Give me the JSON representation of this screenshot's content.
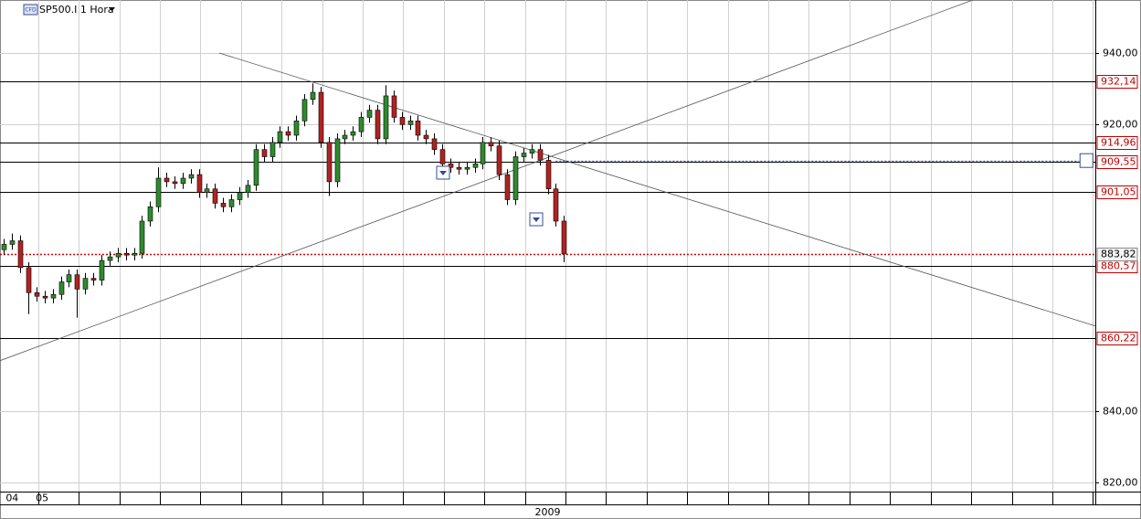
{
  "chart_data": {
    "type": "candlestick",
    "title": "SP500.I 1 Hora",
    "badge": "CFD",
    "xlim": [
      -0.5,
      134.5
    ],
    "ylim": [
      817.4,
      954.8
    ],
    "yticks": [
      {
        "value": 820,
        "label": "820,00"
      },
      {
        "value": 840,
        "label": "840,00"
      },
      {
        "value": 920,
        "label": "920,00"
      },
      {
        "value": 940,
        "label": "940,00"
      }
    ],
    "xticks": [
      4.2,
      9.2,
      14.2,
      19.2,
      24.2,
      29.2,
      34.2,
      39.2,
      44.2,
      49.2,
      54.2,
      59.2,
      64.2,
      69.2,
      74.2,
      79.2,
      84.2,
      89.2,
      94.2,
      99.2,
      104.2,
      109.2,
      114.2,
      119.2,
      124.2,
      129.2,
      134.2
    ],
    "xlabels": [
      {
        "value": 1,
        "label": "04"
      },
      {
        "value": 4.7,
        "label": "05"
      }
    ],
    "year_label": {
      "value": 67,
      "label": "2009"
    },
    "grid": true,
    "up_color": "#2e8b2e",
    "down_color": "#b22222",
    "open": [
      885,
      886.5,
      887.5,
      880,
      873,
      872,
      871.5,
      872.5,
      876,
      878,
      874,
      877,
      876.5,
      882,
      883,
      884,
      883.5,
      884,
      893,
      897,
      905,
      904,
      903.5,
      905,
      906,
      901,
      902,
      898,
      897,
      899,
      901,
      903,
      913,
      911,
      915,
      918,
      917,
      921,
      927,
      929,
      915,
      904,
      916,
      917,
      918,
      922,
      924,
      916,
      928,
      922,
      920,
      921,
      917,
      916,
      913,
      909,
      908,
      907.5,
      908,
      909,
      915,
      914,
      906,
      899,
      911,
      912,
      913,
      910,
      902,
      893
    ],
    "high": [
      888,
      889.5,
      889,
      881.5,
      874.5,
      873.5,
      874,
      877.5,
      879.5,
      879.5,
      878.5,
      878.5,
      883.5,
      884.5,
      885.5,
      885.5,
      885.5,
      894.5,
      898.5,
      908,
      906.5,
      905.5,
      906.5,
      907.5,
      907.5,
      903.5,
      903.5,
      899.5,
      900.5,
      902.5,
      904.5,
      914.5,
      914.5,
      916.5,
      919.5,
      919.5,
      922.5,
      928.5,
      931.5,
      930.5,
      916.5,
      917.5,
      918.5,
      919.5,
      923.5,
      925.5,
      925.5,
      931,
      929.5,
      923.5,
      922.5,
      922.5,
      918.5,
      917.5,
      914.5,
      910.5,
      909.5,
      909.5,
      910.5,
      916.5,
      916.5,
      915.5,
      907.5,
      912.5,
      913.5,
      914.5,
      914.5,
      911.5,
      903.5,
      894.5
    ],
    "low": [
      883.5,
      885,
      878.5,
      867,
      870.5,
      870,
      870,
      871,
      874.5,
      866,
      872.5,
      875,
      875,
      880.5,
      881.5,
      882,
      882,
      882.5,
      891.5,
      895.5,
      902.5,
      902,
      902,
      903.5,
      899.5,
      899.5,
      896.5,
      895.5,
      895.5,
      897.5,
      899.5,
      901.5,
      909.5,
      909.5,
      913.5,
      915.5,
      915.5,
      919.5,
      925.5,
      913.5,
      900,
      902.5,
      914.5,
      915.5,
      916.5,
      920.5,
      914.5,
      914.5,
      920.5,
      918.5,
      918.5,
      915.5,
      914.5,
      911.5,
      907.5,
      906.5,
      906,
      906,
      906.5,
      907.5,
      912.5,
      904.5,
      897.5,
      897.5,
      909.5,
      910.5,
      908.5,
      900.5,
      891.5,
      881.5
    ],
    "close": [
      886.5,
      887.5,
      880,
      873,
      872,
      871.5,
      872.5,
      876,
      878,
      874,
      877,
      876.5,
      882,
      883,
      884,
      883.5,
      884,
      893,
      897,
      905,
      904,
      903.5,
      905,
      906,
      901,
      902,
      898,
      897,
      899,
      901,
      903,
      913,
      911,
      915,
      918,
      917,
      921,
      927,
      929,
      915,
      904,
      916,
      917,
      918,
      922,
      924,
      916,
      928,
      922,
      920,
      921,
      917,
      916,
      913,
      909,
      908,
      907.5,
      908,
      909,
      915,
      914,
      906,
      899,
      911,
      912,
      913,
      910,
      902,
      893,
      883.82
    ],
    "levels": [
      {
        "value": 932.14,
        "label": "932,14"
      },
      {
        "value": 914.96,
        "label": "914,96"
      },
      {
        "value": 909.55,
        "label": "909,55"
      },
      {
        "value": 901.05,
        "label": "901,05"
      },
      {
        "value": 880.57,
        "label": "880,57"
      },
      {
        "value": 860.22,
        "label": "860,22"
      }
    ],
    "last": {
      "value": 883.82,
      "label": "883,82"
    },
    "trendlines": [
      {
        "x": [
          26.5,
          134.5
        ],
        "y": [
          940,
          863.7
        ]
      },
      {
        "x": [
          -0.5,
          119.4
        ],
        "y": [
          854,
          954.8
        ]
      }
    ],
    "alert_line": {
      "x": [
        68,
        132.5
      ],
      "y": 909.8
    }
  }
}
